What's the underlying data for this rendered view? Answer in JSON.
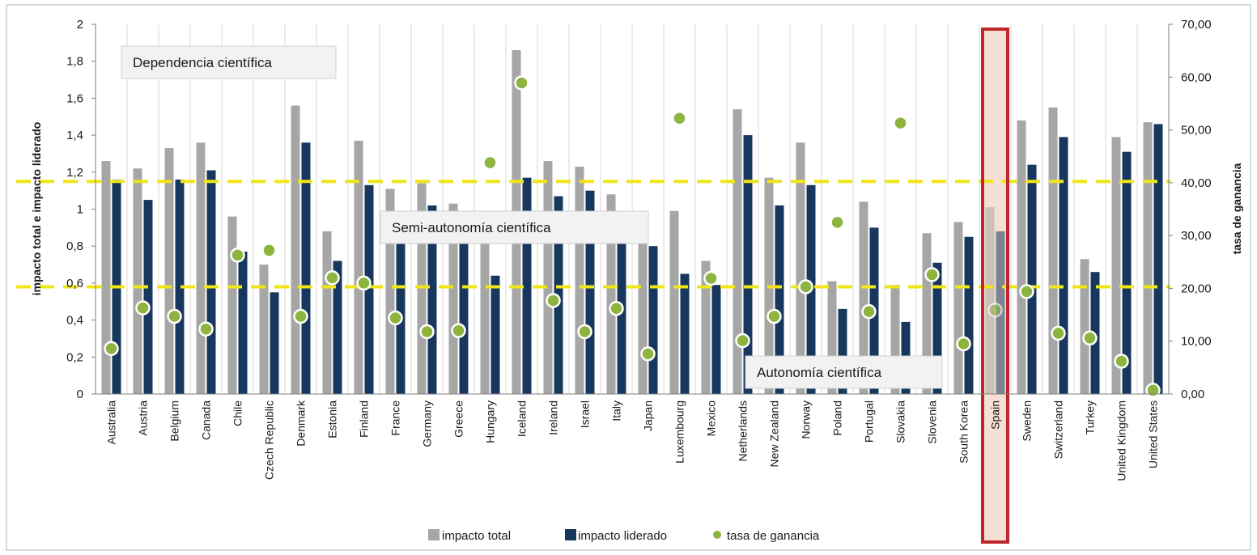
{
  "chart_data": {
    "type": "bar",
    "categories": [
      "Australia",
      "Austria",
      "Belgium",
      "Canada",
      "Chile",
      "Czech Republic",
      "Denmark",
      "Estonia",
      "Finland",
      "France",
      "Germany",
      "Greece",
      "Hungary",
      "Iceland",
      "Ireland",
      "Israel",
      "Italy",
      "Japan",
      "Luxembourg",
      "Mexico",
      "Netherlands",
      "New Zealand",
      "Norway",
      "Poland",
      "Portugal",
      "Slovakia",
      "Slovenia",
      "South Korea",
      "Spain",
      "Sweden",
      "Switzerland",
      "Turkey",
      "United Kingdom",
      "United States"
    ],
    "series": [
      {
        "name": "impacto total",
        "type": "bar",
        "axis": "left",
        "color": "#a6a6a6",
        "values": [
          1.26,
          1.22,
          1.33,
          1.36,
          0.96,
          0.7,
          1.56,
          0.88,
          1.37,
          1.11,
          1.14,
          1.03,
          0.85,
          1.86,
          1.26,
          1.23,
          1.08,
          0.85,
          0.99,
          0.72,
          1.54,
          1.17,
          1.36,
          0.61,
          1.04,
          0.59,
          0.87,
          0.93,
          1.01,
          1.48,
          1.55,
          0.73,
          1.39,
          1.47
        ]
      },
      {
        "name": "impacto liderado",
        "type": "bar",
        "axis": "left",
        "color": "#17375e",
        "values": [
          1.16,
          1.05,
          1.16,
          1.21,
          0.77,
          0.55,
          1.36,
          0.72,
          1.13,
          0.88,
          1.02,
          0.88,
          0.64,
          1.17,
          1.07,
          1.1,
          0.88,
          0.8,
          0.65,
          0.59,
          1.4,
          1.02,
          1.13,
          0.46,
          0.9,
          0.39,
          0.71,
          0.85,
          0.88,
          1.24,
          1.39,
          0.66,
          1.31,
          1.46
        ]
      },
      {
        "name": "tasa de ganancia",
        "type": "scatter",
        "axis": "right",
        "color": "#8db43e",
        "values": [
          8.6,
          16.3,
          14.7,
          12.3,
          26.3,
          27.2,
          14.7,
          22.0,
          21.0,
          14.4,
          11.8,
          12.0,
          43.8,
          58.9,
          17.7,
          11.8,
          16.2,
          7.6,
          52.2,
          21.9,
          10.1,
          14.7,
          20.3,
          32.5,
          15.6,
          51.3,
          22.6,
          9.5,
          15.9,
          19.4,
          11.5,
          10.6,
          6.2,
          0.7
        ]
      }
    ],
    "yticks_left": [
      "0",
      "0,2",
      "0,4",
      "0,6",
      "0,8",
      "1",
      "1,2",
      "1,4",
      "1,6",
      "1,8",
      "2"
    ],
    "yticks_right": [
      "0,00",
      "10,00",
      "20,00",
      "30,00",
      "40,00",
      "50,00",
      "60,00",
      "70,00"
    ],
    "ylim_left": [
      0,
      2
    ],
    "ylim_right": [
      0,
      70
    ],
    "ylabel_left": "impacto total e impacto liderado",
    "ylabel_right": "tasa de ganancia",
    "grid": "vertical",
    "legend_position": "bottom",
    "reference_lines": [
      {
        "axis": "left",
        "value": 1.15,
        "color": "#f0e617",
        "style": "dashed"
      },
      {
        "axis": "left",
        "value": 0.58,
        "color": "#f0e617",
        "style": "dashed"
      }
    ],
    "annotations": [
      "Dependencia científica",
      "Semi-autonomía científica",
      "Autonomía científica"
    ],
    "highlight": {
      "category": "Spain",
      "border_color": "#c0272d",
      "fill_color": "#f2dccb"
    }
  }
}
